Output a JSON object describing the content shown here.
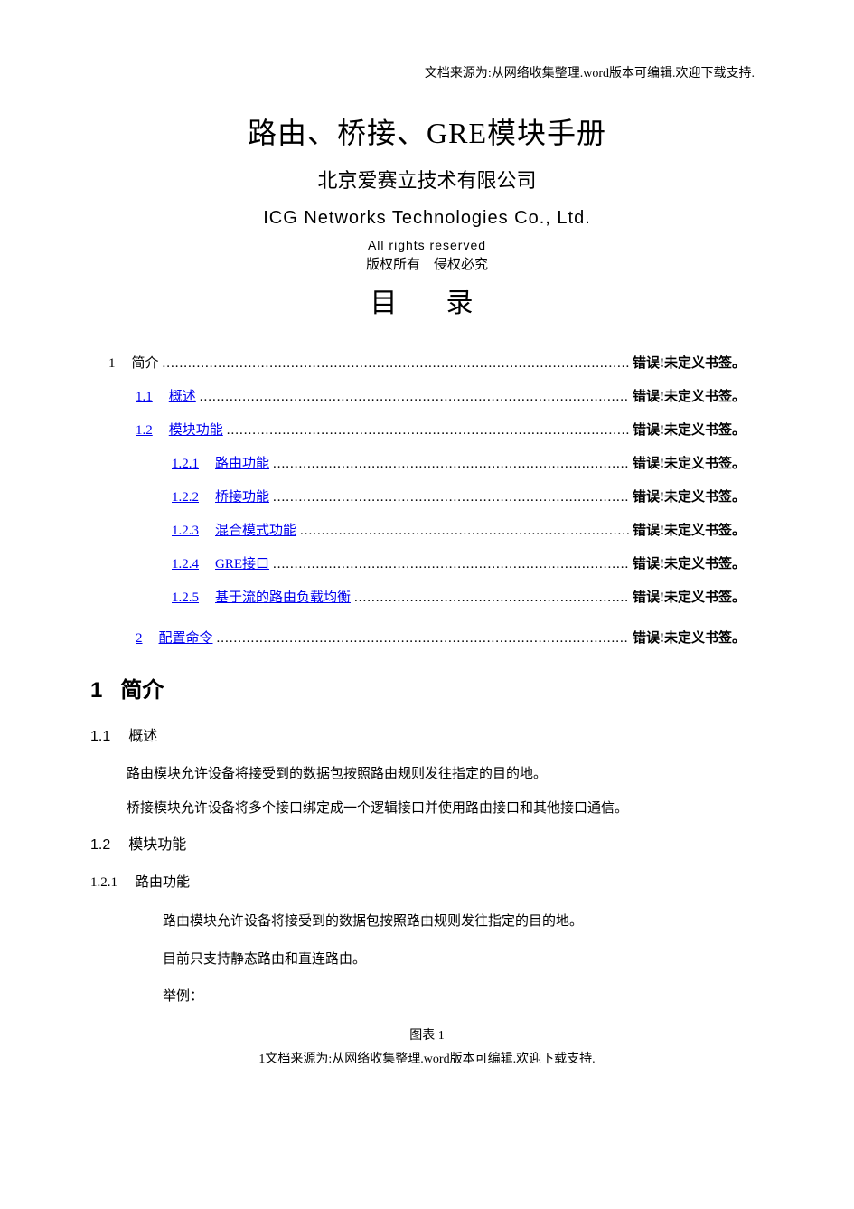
{
  "header_note": "文档来源为:从网络收集整理.word版本可编辑.欢迎下载支持.",
  "title_main": "路由、桥接、GRE模块手册",
  "title_sub": "北京爱赛立技术有限公司",
  "title_en": "ICG Networks Technologies Co., Ltd.",
  "rights_en": "All rights reserved",
  "rights_cn": "版权所有　侵权必究",
  "toc_heading": "目　录",
  "toc": {
    "error_text": "错误!未定义书签。",
    "entries": [
      {
        "num": "1",
        "label": "简介",
        "indent": 0,
        "link": false,
        "gap": false
      },
      {
        "num": "1.1",
        "label": "概述",
        "indent": 1,
        "link": true,
        "gap": false
      },
      {
        "num": "1.2",
        "label": "模块功能",
        "indent": 1,
        "link": true,
        "gap": false
      },
      {
        "num": "1.2.1",
        "label": "路由功能",
        "indent": 2,
        "link": true,
        "gap": false
      },
      {
        "num": "1.2.2",
        "label": "桥接功能",
        "indent": 2,
        "link": true,
        "gap": false
      },
      {
        "num": "1.2.3",
        "label": "混合模式功能",
        "indent": 2,
        "link": true,
        "gap": false
      },
      {
        "num": "1.2.4",
        "label": "GRE接口",
        "indent": 2,
        "link": true,
        "gap": false
      },
      {
        "num": "1.2.5",
        "label": "基于流的路由负载均衡",
        "indent": 2,
        "link": true,
        "gap": false
      },
      {
        "num": "2",
        "label": "配置命令",
        "indent": 1,
        "link": true,
        "gap": true
      }
    ]
  },
  "body": {
    "h1_num": "1",
    "h1_label": "简介",
    "h2_1_num": "1.1",
    "h2_1_label": "概述",
    "p1": "路由模块允许设备将接受到的数据包按照路由规则发往指定的目的地。",
    "p2": "桥接模块允许设备将多个接口绑定成一个逻辑接口并使用路由接口和其他接口通信。",
    "h2_2_num": "1.2",
    "h2_2_label": "模块功能",
    "h3_1_num": "1.2.1",
    "h3_1_label": "路由功能",
    "p3": "路由模块允许设备将接受到的数据包按照路由规则发往指定的目的地。",
    "p4": "目前只支持静态路由和直连路由。",
    "p5": "举例：",
    "figure_caption": "图表 1"
  },
  "footer_note": "1文档来源为:从网络收集整理.word版本可编辑.欢迎下载支持.",
  "colors": {
    "text": "#000000",
    "link": "#0000ee",
    "background": "#ffffff"
  },
  "fonts": {
    "body_family": "SimSun",
    "heading_family": "SimHei",
    "en_family": "Arial",
    "title_main_size": 32,
    "title_sub_size": 22,
    "title_en_size": 20,
    "toc_heading_size": 30,
    "toc_row_size": 15,
    "h1_size": 24,
    "h2_size": 16,
    "h3_size": 15,
    "para_size": 15,
    "footer_size": 14
  }
}
